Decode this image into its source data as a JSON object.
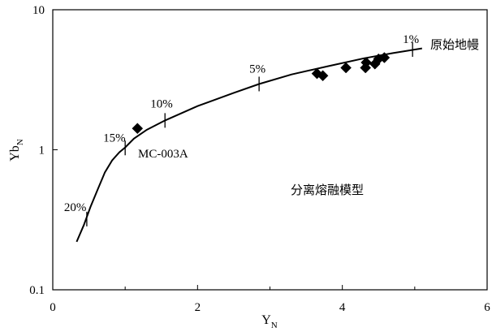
{
  "chart_data": {
    "type": "scatter",
    "title": "",
    "xlabel": "Y",
    "xlabel_sub": "N",
    "ylabel": "Yb",
    "ylabel_sub": "N",
    "xlim": [
      0,
      6
    ],
    "ylim": [
      0.1,
      10
    ],
    "yscale": "log",
    "grid": false,
    "x_ticks": [
      {
        "value": 0,
        "label": "0"
      },
      {
        "value": 2,
        "label": "2"
      },
      {
        "value": 4,
        "label": "4"
      },
      {
        "value": 6,
        "label": "6"
      }
    ],
    "y_ticks": [
      {
        "value": 0.1,
        "label": "0.1"
      },
      {
        "value": 1,
        "label": "1"
      },
      {
        "value": 10,
        "label": "10"
      }
    ],
    "curve": {
      "name": "分离熔融模型",
      "x": [
        0.33,
        0.43,
        0.52,
        0.62,
        0.72,
        0.82,
        0.92,
        1.0,
        1.12,
        1.3,
        1.55,
        2.0,
        2.5,
        2.85,
        3.3,
        3.8,
        4.3,
        4.7,
        5.1
      ],
      "y": [
        0.22,
        0.29,
        0.39,
        0.52,
        0.69,
        0.84,
        0.96,
        1.04,
        1.2,
        1.39,
        1.62,
        2.05,
        2.55,
        2.95,
        3.45,
        3.95,
        4.5,
        4.9,
        5.3
      ],
      "tick_marks": [
        {
          "label": "20%",
          "x": 0.47,
          "y": 0.32
        },
        {
          "label": "15%",
          "x": 1.0,
          "y": 1.03
        },
        {
          "label": "10%",
          "x": 1.55,
          "y": 1.62
        },
        {
          "label": "5%",
          "x": 2.85,
          "y": 2.95
        },
        {
          "label": "1%",
          "x": 4.97,
          "y": 5.2
        }
      ]
    },
    "points": [
      {
        "x": 1.17,
        "y": 1.42
      },
      {
        "x": 3.65,
        "y": 3.5
      },
      {
        "x": 3.73,
        "y": 3.38
      },
      {
        "x": 4.05,
        "y": 3.85
      },
      {
        "x": 4.32,
        "y": 3.85
      },
      {
        "x": 4.33,
        "y": 4.2
      },
      {
        "x": 4.45,
        "y": 4.1
      },
      {
        "x": 4.5,
        "y": 4.45
      },
      {
        "x": 4.58,
        "y": 4.55
      }
    ],
    "annotations": [
      {
        "text": "MC-003A"
      },
      {
        "text": "原始地幔"
      },
      {
        "text": "分离熔融模型"
      }
    ],
    "marker_color": "#000000",
    "line_color": "#000000"
  }
}
